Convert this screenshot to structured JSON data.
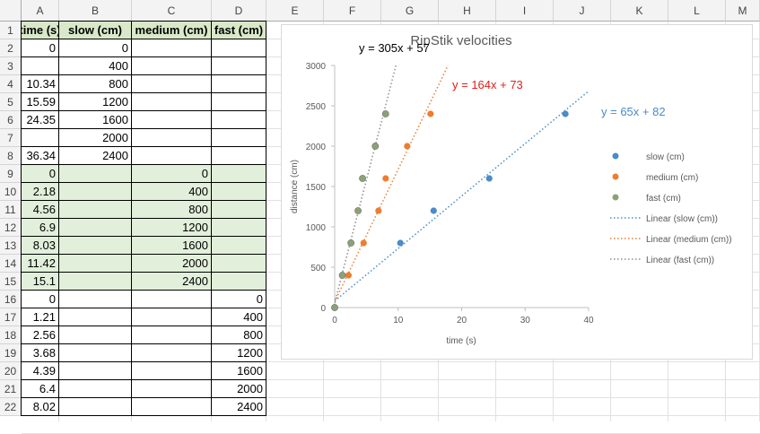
{
  "columns": [
    "A",
    "B",
    "C",
    "D",
    "E",
    "F",
    "G",
    "H",
    "I",
    "J",
    "K",
    "L",
    "M"
  ],
  "rows": [
    "1",
    "2",
    "3",
    "4",
    "5",
    "6",
    "7",
    "8",
    "9",
    "10",
    "11",
    "12",
    "13",
    "14",
    "15",
    "16",
    "17",
    "18",
    "19",
    "20",
    "21",
    "22"
  ],
  "table": {
    "headers": [
      "time (s)",
      "slow (cm)",
      "medium (cm)",
      "fast (cm)"
    ],
    "rows": [
      [
        "0",
        "0",
        "",
        ""
      ],
      [
        "",
        "400",
        "",
        ""
      ],
      [
        "10.34",
        "800",
        "",
        ""
      ],
      [
        "15.59",
        "1200",
        "",
        ""
      ],
      [
        "24.35",
        "1600",
        "",
        ""
      ],
      [
        "",
        "2000",
        "",
        ""
      ],
      [
        "36.34",
        "2400",
        "",
        ""
      ],
      [
        "0",
        "",
        "0",
        ""
      ],
      [
        "2.18",
        "",
        "400",
        ""
      ],
      [
        "4.56",
        "",
        "800",
        ""
      ],
      [
        "6.9",
        "",
        "1200",
        ""
      ],
      [
        "8.03",
        "",
        "1600",
        ""
      ],
      [
        "11.42",
        "",
        "2000",
        ""
      ],
      [
        "15.1",
        "",
        "2400",
        ""
      ],
      [
        "0",
        "",
        "",
        "0"
      ],
      [
        "1.21",
        "",
        "",
        "400"
      ],
      [
        "2.56",
        "",
        "",
        "800"
      ],
      [
        "3.68",
        "",
        "",
        "1200"
      ],
      [
        "4.39",
        "",
        "",
        "1600"
      ],
      [
        "6.4",
        "",
        "",
        "2000"
      ],
      [
        "8.02",
        "",
        "",
        "2400"
      ]
    ]
  },
  "colors": {
    "header_fill": "#d9e8c8",
    "medium_fill": "#e2efda",
    "slow": "#4a8cc7",
    "medium": "#ed7d31",
    "fast": "#8aa376",
    "grid": "#d9d9d9"
  },
  "chart_data": {
    "type": "scatter",
    "title": "RipStik velocities",
    "xlabel": "time (s)",
    "ylabel": "distance (cm)",
    "xlim": [
      0,
      40
    ],
    "ylim": [
      0,
      3000
    ],
    "xticks": [
      "0",
      "10",
      "20",
      "30",
      "40"
    ],
    "yticks": [
      "0",
      "500",
      "1000",
      "1500",
      "2000",
      "2500",
      "3000"
    ],
    "series": [
      {
        "name": "slow (cm)",
        "color": "#4a8cc7",
        "x": [
          0,
          10.34,
          15.59,
          24.35,
          36.34
        ],
        "y": [
          0,
          800,
          1200,
          1600,
          2400
        ]
      },
      {
        "name": "medium (cm)",
        "color": "#ed7d31",
        "x": [
          0,
          2.18,
          4.56,
          6.9,
          8.03,
          11.42,
          15.1
        ],
        "y": [
          0,
          400,
          800,
          1200,
          1600,
          2000,
          2400
        ]
      },
      {
        "name": "fast (cm)",
        "color": "#8aa376",
        "x": [
          0,
          1.21,
          2.56,
          3.68,
          4.39,
          6.4,
          8.02
        ],
        "y": [
          0,
          400,
          800,
          1200,
          1600,
          2000,
          2400
        ]
      }
    ],
    "trendlines": [
      {
        "name": "Linear (slow (cm))",
        "color": "#4a8cc7",
        "slope": 65,
        "intercept": 82,
        "label": "y = 65x + 82"
      },
      {
        "name": "Linear (medium (cm))",
        "color": "#ed7d31",
        "slope": 164,
        "intercept": 73,
        "label": "y = 164x + 73",
        "label_color": "#e0201b"
      },
      {
        "name": "Linear (fast (cm))",
        "color": "#8f8f8f",
        "slope": 305,
        "intercept": 57,
        "label": "y = 305x + 57",
        "label_color": "#000000"
      }
    ],
    "legend": "right"
  }
}
